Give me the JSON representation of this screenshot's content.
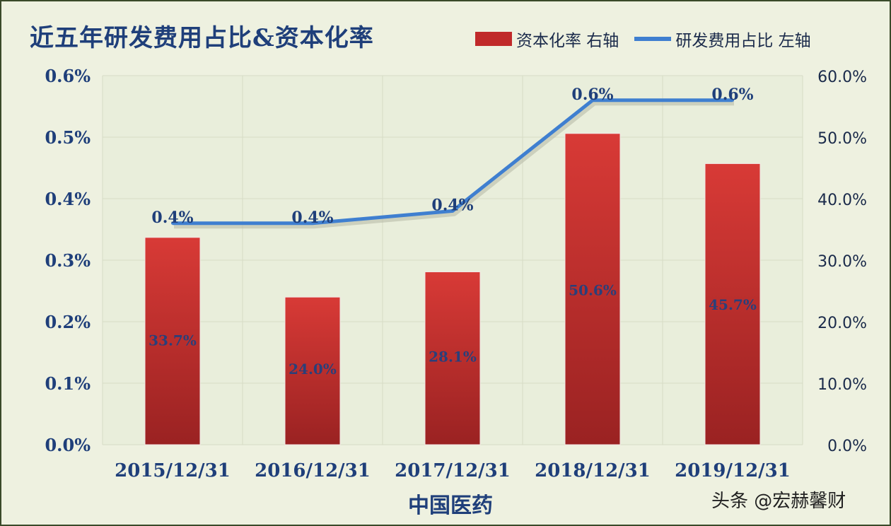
{
  "chart_data": {
    "type": "bar",
    "title": "近五年研发费用占比&资本化率",
    "xlabel": "中国医药",
    "categories": [
      "2015/12/31",
      "2016/12/31",
      "2017/12/31",
      "2018/12/31",
      "2019/12/31"
    ],
    "series": [
      {
        "name": "资本化率 右轴",
        "type": "bar",
        "axis": "right",
        "values": [
          33.7,
          24.0,
          28.1,
          50.6,
          45.7
        ],
        "labels": [
          "33.7%",
          "24.0%",
          "28.1%",
          "50.6%",
          "45.7%"
        ],
        "color": "#c62a2a"
      },
      {
        "name": "研发费用占比 左轴",
        "type": "line",
        "axis": "left",
        "values": [
          0.36,
          0.36,
          0.38,
          0.56,
          0.56
        ],
        "labels": [
          "0.4%",
          "0.4%",
          "0.4%",
          "0.6%",
          "0.6%"
        ],
        "color": "#3f7fd0"
      }
    ],
    "y_left": {
      "range": [
        0,
        0.6
      ],
      "ticks": [
        "0.0%",
        "0.1%",
        "0.2%",
        "0.3%",
        "0.4%",
        "0.5%",
        "0.6%"
      ]
    },
    "y_right": {
      "range": [
        0,
        60
      ],
      "ticks": [
        "0.0%",
        "10.0%",
        "20.0%",
        "30.0%",
        "40.0%",
        "50.0%",
        "60.0%"
      ]
    },
    "grid": true,
    "legend_position": "top-right"
  },
  "watermark": "头条 @宏赫馨财",
  "colors": {
    "title": "#1f3f7a",
    "background": "#eef1e0",
    "bar": "#c62a2a",
    "line": "#3f7fd0"
  }
}
